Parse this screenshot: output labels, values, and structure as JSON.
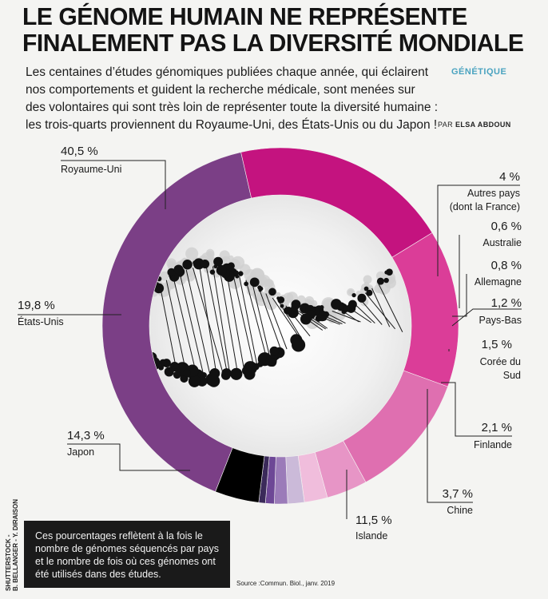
{
  "header": {
    "title_lines": [
      "LE GÉNOME HUMAIN NE REPRÉSENTE",
      "FINALEMENT PAS LA DIVERSITÉ MONDIALE"
    ],
    "rubric": "GÉNÉTIQUE",
    "byline_prefix": "PAR",
    "byline_author": "ELSA ABDOUN",
    "lede_lines": [
      "Les centaines d’études génomiques publiées chaque année, qui éclairent",
      "nos comportements et guident la recherche médicale, sont menées sur",
      "des volontaires qui sont très loin de représenter toute la diversité humaine :",
      "les trois-quarts proviennent du Royaume-Uni, des États-Unis ou du Japon !"
    ]
  },
  "note": {
    "lines": [
      "Ces pourcentages reflètent à la fois le",
      "nombre de génomes séquencés par pays",
      "et le nombre de fois où ces génomes ont",
      "été utilisés dans des études."
    ]
  },
  "credit": {
    "lines": [
      "SHUTTERSTOCK -",
      "B. BELLANGER - Y. DIRAISON"
    ]
  },
  "source": "Source :Commun. Biol., janv. 2019",
  "chart_data": {
    "type": "pie",
    "subtype": "donut",
    "slices": [
      {
        "pct_label": "40,5 %",
        "name_lines": [
          "Royaume-Uni"
        ],
        "value": 40.5,
        "color": "#7b3f86"
      },
      {
        "pct_label": "19,8 %",
        "name_lines": [
          "États-Unis"
        ],
        "value": 19.8,
        "color": "#c4137f"
      },
      {
        "pct_label": "14,3 %",
        "name_lines": [
          "Japon"
        ],
        "value": 14.3,
        "color": "#db3d98"
      },
      {
        "pct_label": "11,5 %",
        "name_lines": [
          "Islande"
        ],
        "value": 11.5,
        "color": "#df6fb0"
      },
      {
        "pct_label": "3,7 %",
        "name_lines": [
          "Chine"
        ],
        "value": 3.7,
        "color": "#e795c6"
      },
      {
        "pct_label": "2,1 %",
        "name_lines": [
          "Finlande"
        ],
        "value": 2.1,
        "color": "#f0bddc"
      },
      {
        "pct_label": "1,5 %",
        "name_lines": [
          "Corée du",
          "Sud"
        ],
        "value": 1.5,
        "color": "#cbbad9"
      },
      {
        "pct_label": "1,2 %",
        "name_lines": [
          "Pays-Bas"
        ],
        "value": 1.2,
        "color": "#9b7bb9"
      },
      {
        "pct_label": "0,8 %",
        "name_lines": [
          "Allemagne"
        ],
        "value": 0.8,
        "color": "#6d4796"
      },
      {
        "pct_label": "0,6 %",
        "name_lines": [
          "Australie"
        ],
        "value": 0.6,
        "color": "#3b2a5a"
      },
      {
        "pct_label": "4 %",
        "name_lines": [
          "Autres pays",
          "(dont la France)"
        ],
        "value": 4.0,
        "color": "#000000"
      }
    ]
  }
}
